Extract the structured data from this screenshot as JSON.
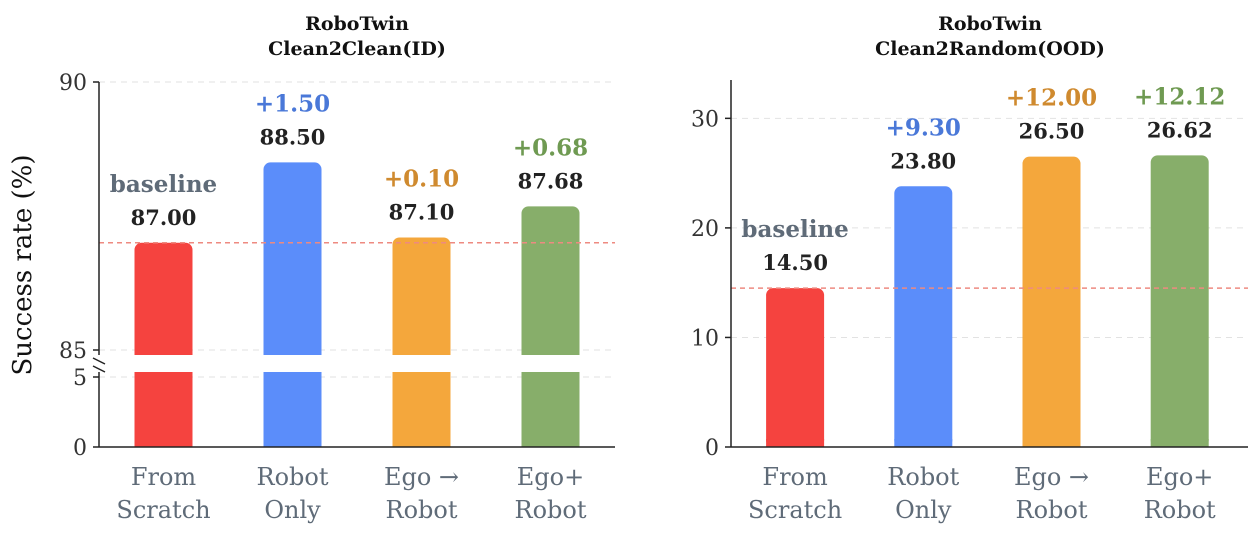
{
  "ylabel": "Success rate (%)",
  "chart_data": [
    {
      "type": "bar",
      "title": "RoboTwin\nClean2Clean(ID)",
      "title_lines": [
        "RoboTwin",
        "Clean2Clean(ID)"
      ],
      "ylabel": "Success rate (%)",
      "categories": [
        "From\nScratch",
        "Robot\nOnly",
        "Ego →\nRobot",
        "Ego+\nRobot"
      ],
      "category_lines": [
        [
          "From",
          "Scratch"
        ],
        [
          "Robot",
          "Only"
        ],
        [
          "Ego →",
          "Robot"
        ],
        [
          "Ego+",
          "Robot"
        ]
      ],
      "values": [
        87.0,
        88.5,
        87.1,
        87.68
      ],
      "value_labels": [
        "87.00",
        "88.50",
        "87.10",
        "87.68"
      ],
      "annotations": [
        "baseline",
        "+1.50",
        "+0.10",
        "+0.68"
      ],
      "baseline": 87.0,
      "broken_axis": true,
      "lower_ylim": [
        0,
        5
      ],
      "upper_ylim": [
        85,
        90
      ],
      "yticks_lower": [
        "0",
        "5"
      ],
      "yticks_upper": [
        "85",
        "90"
      ],
      "grid": true
    },
    {
      "type": "bar",
      "title": "RoboTwin\nClean2Random(OOD)",
      "title_lines": [
        "RoboTwin",
        "Clean2Random(OOD)"
      ],
      "categories": [
        "From\nScratch",
        "Robot\nOnly",
        "Ego →\nRobot",
        "Ego+\nRobot"
      ],
      "category_lines": [
        [
          "From",
          "Scratch"
        ],
        [
          "Robot",
          "Only"
        ],
        [
          "Ego →",
          "Robot"
        ],
        [
          "Ego+",
          "Robot"
        ]
      ],
      "values": [
        14.5,
        23.8,
        26.5,
        26.62
      ],
      "value_labels": [
        "14.50",
        "23.80",
        "26.50",
        "26.62"
      ],
      "annotations": [
        "baseline",
        "+9.30",
        "+12.00",
        "+12.12"
      ],
      "baseline": 14.5,
      "broken_axis": false,
      "ylim": [
        0,
        33.5
      ],
      "yticks": [
        "0",
        "10",
        "20",
        "30"
      ],
      "grid": true
    }
  ],
  "colors": {
    "bars": [
      "#f5433f",
      "#5b8dfa",
      "#f4a73c",
      "#87ae6a"
    ],
    "annotations": [
      "#5f6b78",
      "#4a78d8",
      "#cf8a2f",
      "#6f9a52"
    ],
    "baseline_line": "#ee8a80",
    "grid": "#e2e2e2",
    "axis": "#222222"
  }
}
